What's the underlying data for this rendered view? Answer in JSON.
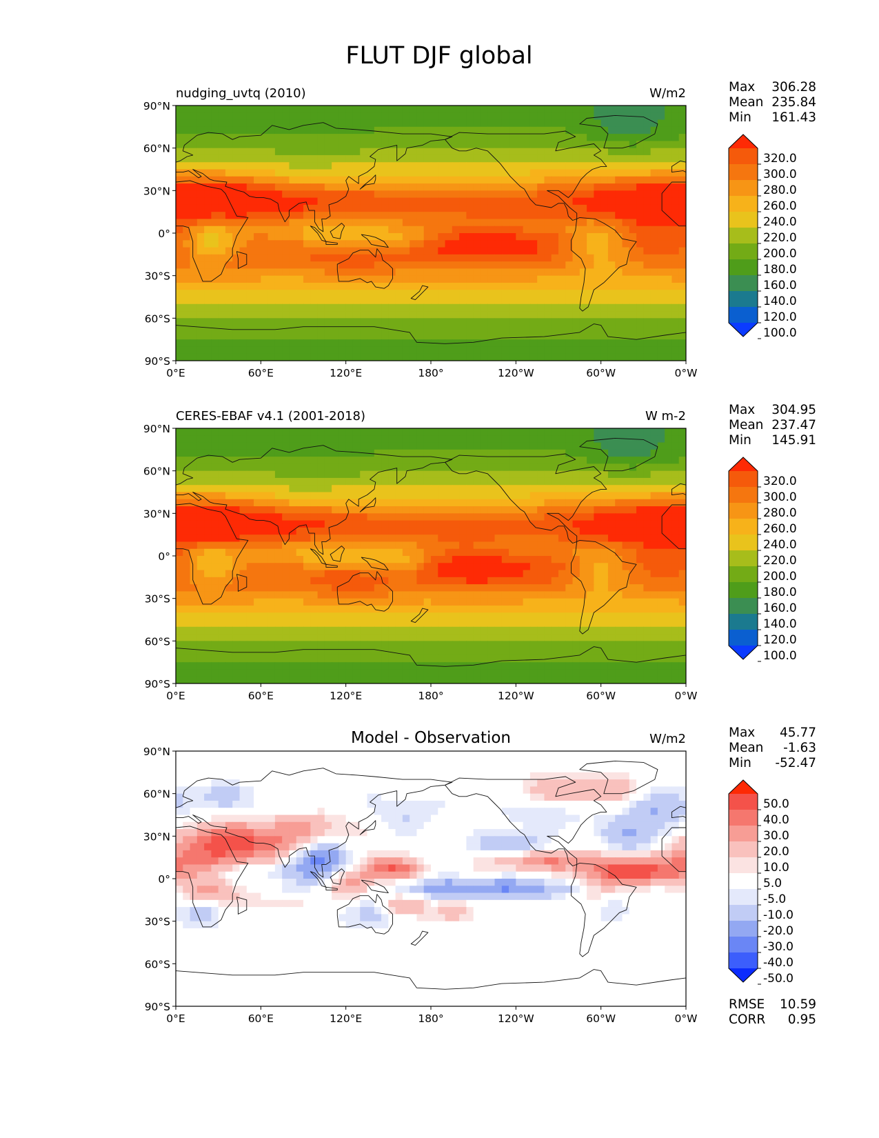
{
  "figure": {
    "title": "FLUT DJF global"
  },
  "lat_ticks": [
    "90°N",
    "60°N",
    "30°N",
    "0°",
    "30°S",
    "60°S",
    "90°S"
  ],
  "lon_ticks": [
    "0°E",
    "60°E",
    "120°E",
    "180°",
    "120°W",
    "60°W",
    "0°W"
  ],
  "colors": {
    "abs_levels": [
      "#0b3bff",
      "#0a5fd0",
      "#1b7a8f",
      "#3b8e52",
      "#4f9d1a",
      "#73ab16",
      "#a7bd1b",
      "#e9c31c",
      "#f7b21a",
      "#f79515",
      "#f5760f",
      "#f55a0b",
      "#fe2a05"
    ],
    "diff_levels": [
      "#0b2bfd",
      "#3c5efc",
      "#6a86f5",
      "#93a8f2",
      "#c1ccf5",
      "#e4e9fb",
      "#ffffff",
      "#fbe3e2",
      "#f9c1bd",
      "#f79d95",
      "#f5776e",
      "#f4524a",
      "#fd2a05"
    ]
  },
  "panels": [
    {
      "id": "model",
      "left_title": "nudging_uvtq (2010)",
      "center_title": "",
      "units": "W/m2",
      "stats": [
        {
          "label": "Max",
          "value": "306.28"
        },
        {
          "label": "Mean",
          "value": "235.84"
        },
        {
          "label": "Min",
          "value": "161.43"
        }
      ],
      "colorbar_type": "abs",
      "colorbar_labels": [
        "320.0",
        "300.0",
        "280.0",
        "260.0",
        "240.0",
        "220.0",
        "200.0",
        "180.0",
        "160.0",
        "140.0",
        "120.0",
        "100.0"
      ],
      "footer": []
    },
    {
      "id": "obs",
      "left_title": "CERES-EBAF v4.1 (2001-2018)",
      "center_title": "",
      "units": "W m-2",
      "stats": [
        {
          "label": "Max",
          "value": "304.95"
        },
        {
          "label": "Mean",
          "value": "237.47"
        },
        {
          "label": "Min",
          "value": "145.91"
        }
      ],
      "colorbar_type": "abs",
      "colorbar_labels": [
        "320.0",
        "300.0",
        "280.0",
        "260.0",
        "240.0",
        "220.0",
        "200.0",
        "180.0",
        "160.0",
        "140.0",
        "120.0",
        "100.0"
      ],
      "footer": []
    },
    {
      "id": "diff",
      "left_title": "",
      "center_title": "Model - Observation",
      "units": "W/m2",
      "stats": [
        {
          "label": "Max",
          "value": "45.77"
        },
        {
          "label": "Mean",
          "value": "-1.63"
        },
        {
          "label": "Min",
          "value": "-52.47"
        }
      ],
      "colorbar_type": "diff",
      "colorbar_labels": [
        "50.0",
        "40.0",
        "30.0",
        "20.0",
        "10.0",
        "5.0",
        "-5.0",
        "-10.0",
        "-20.0",
        "-30.0",
        "-40.0",
        "-50.0"
      ],
      "footer": [
        {
          "label": "RMSE",
          "value": "10.59"
        },
        {
          "label": "CORR",
          "value": "0.95"
        }
      ]
    }
  ]
}
